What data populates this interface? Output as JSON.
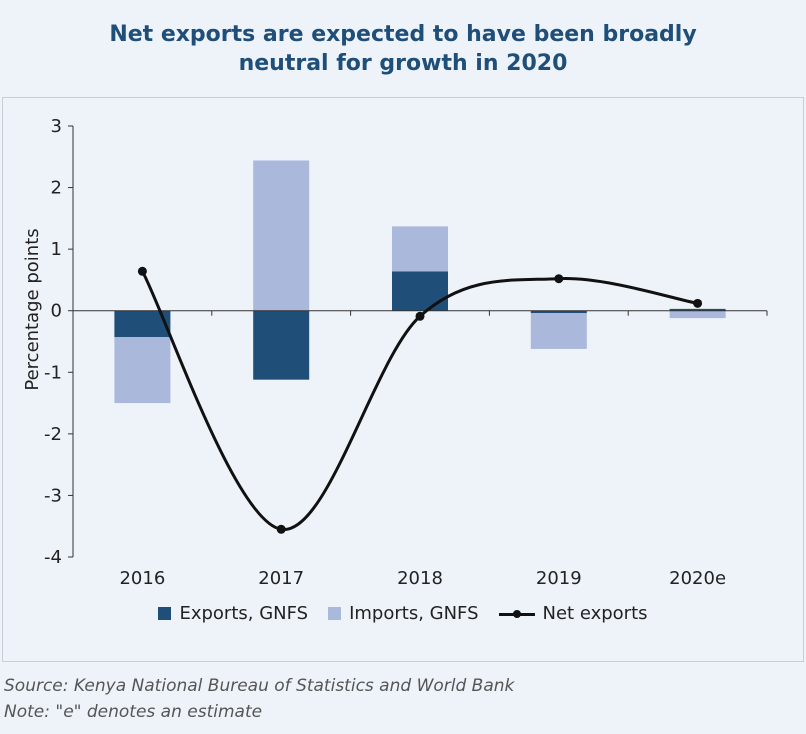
{
  "title_line1": "Net exports are expected to have been broadly",
  "title_line2": "neutral for growth in 2020",
  "source": "Source: Kenya National Bureau of Statistics and World Bank",
  "note": "Note: \"e\" denotes an estimate",
  "colors": {
    "exports": "#1f4e79",
    "imports": "#a9b8db",
    "net": "#111111",
    "background": "#eef3fa"
  },
  "chart_data": {
    "type": "bar",
    "title": "Net exports are expected to have been broadly neutral for growth in 2020",
    "ylabel": "Percentage points",
    "xlabel": "",
    "ylim": [
      -4,
      3
    ],
    "yticks": [
      "-4",
      "-3",
      "-2",
      "-1",
      "0",
      "1",
      "2",
      "3"
    ],
    "categories": [
      "2016",
      "2017",
      "2018",
      "2019",
      "2020e"
    ],
    "series": [
      {
        "name": "Exports, GNFS",
        "kind": "stacked-bar",
        "values": [
          -0.43,
          -1.12,
          0.64,
          -0.04,
          0.03
        ]
      },
      {
        "name": "Imports, GNFS",
        "kind": "stacked-bar",
        "values": [
          -1.07,
          2.44,
          0.73,
          -0.58,
          -0.12
        ]
      },
      {
        "name": "Net exports",
        "kind": "line",
        "values": [
          0.64,
          -3.55,
          -0.09,
          0.52,
          0.12
        ]
      }
    ],
    "legend_position": "bottom",
    "grid": false
  }
}
